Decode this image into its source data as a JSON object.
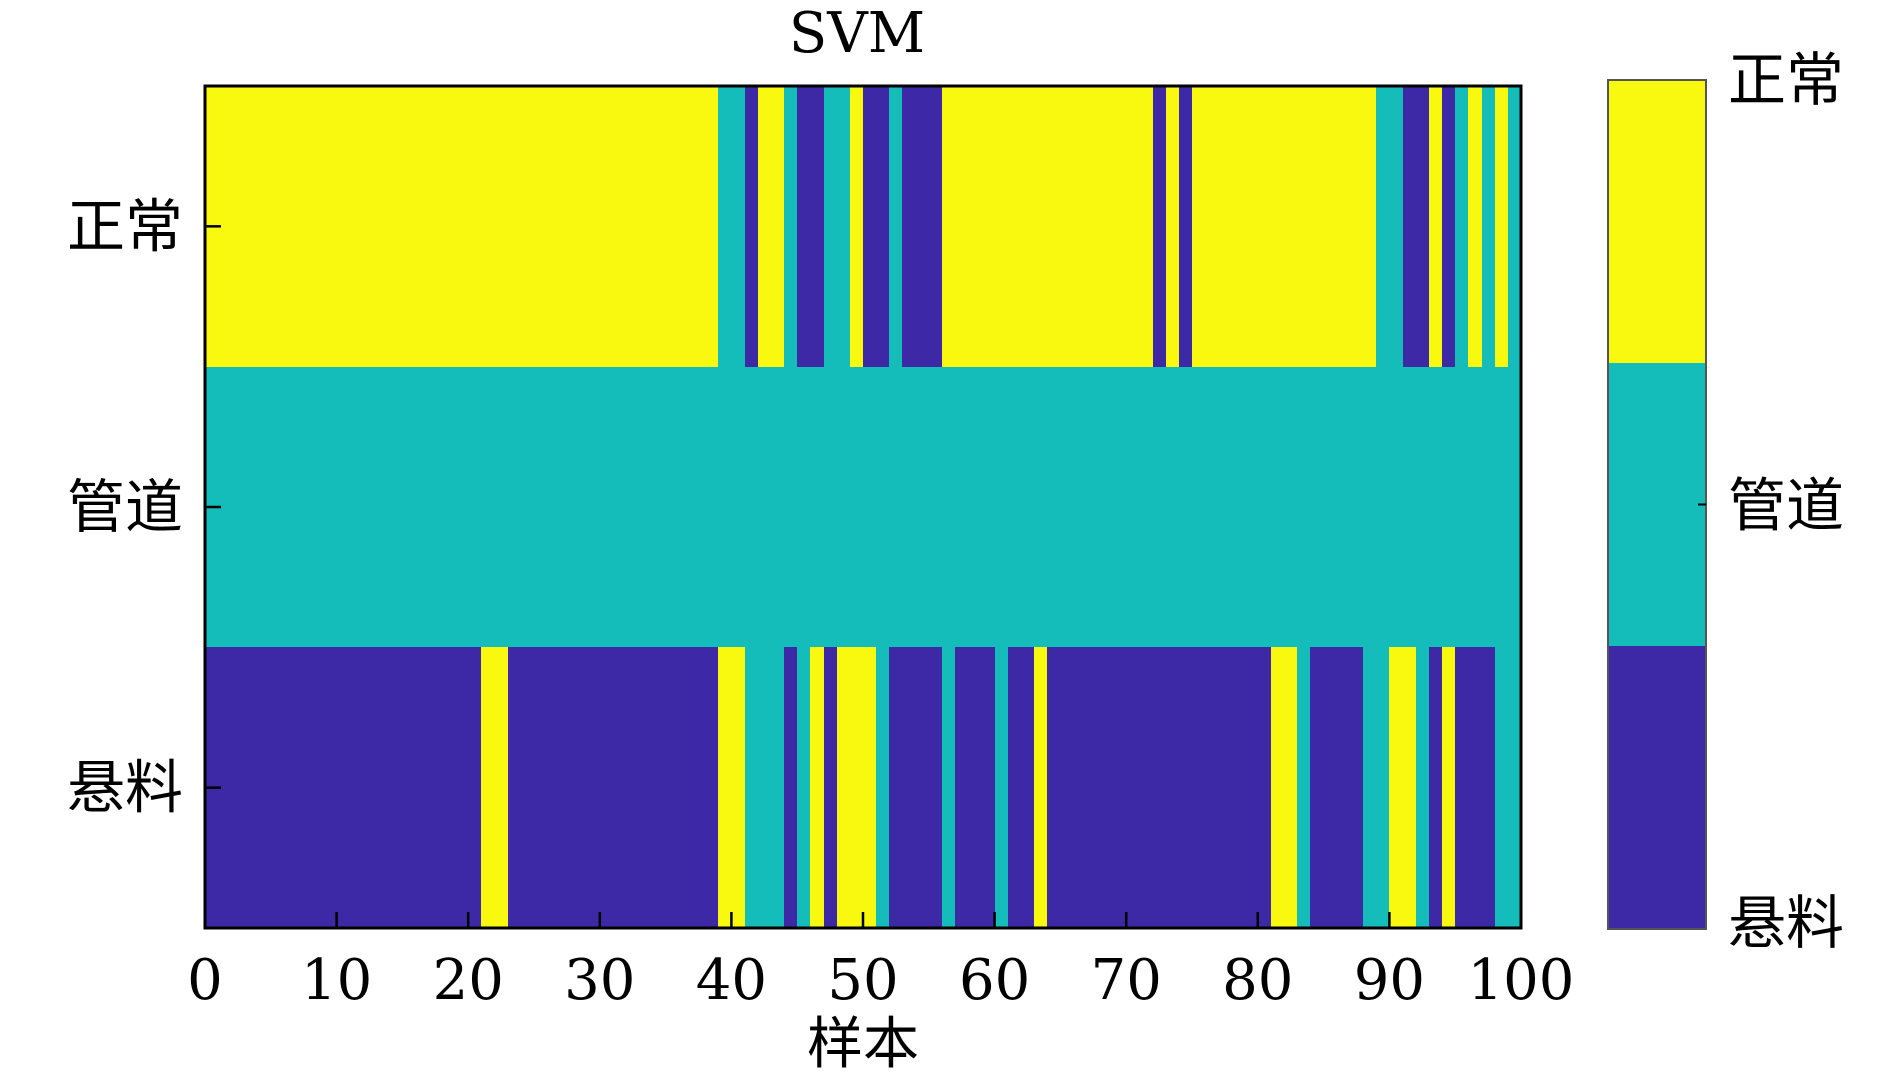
{
  "chart_data": {
    "type": "heatmap",
    "title": "SVM",
    "xlabel": "样本",
    "ylabel": "",
    "xlim": [
      0,
      100
    ],
    "xticks": [
      0,
      10,
      20,
      30,
      40,
      50,
      60,
      70,
      80,
      90,
      100
    ],
    "rows": [
      "正常",
      "管道",
      "悬料"
    ],
    "classes": [
      "正常",
      "管道",
      "悬料"
    ],
    "colors": {
      "正常": "#F9F90F",
      "管道": "#14BDBA",
      "悬料": "#3D28A5"
    },
    "colorbar": {
      "labels_top_to_bottom": [
        "正常",
        "管道",
        "悬料"
      ],
      "colors_top_to_bottom": [
        "#F9F90F",
        "#14BDBA",
        "#3D28A5"
      ]
    },
    "grid": false,
    "cells": [
      {
        "row": "正常",
        "segments": [
          [
            0,
            39,
            "正常"
          ],
          [
            39,
            41,
            "管道"
          ],
          [
            41,
            42,
            "悬料"
          ],
          [
            42,
            44,
            "正常"
          ],
          [
            44,
            45,
            "管道"
          ],
          [
            45,
            47,
            "悬料"
          ],
          [
            47,
            49,
            "管道"
          ],
          [
            49,
            50,
            "正常"
          ],
          [
            50,
            52,
            "悬料"
          ],
          [
            52,
            53,
            "管道"
          ],
          [
            53,
            56,
            "悬料"
          ],
          [
            56,
            72,
            "正常"
          ],
          [
            72,
            73,
            "悬料"
          ],
          [
            73,
            74,
            "正常"
          ],
          [
            74,
            75,
            "悬料"
          ],
          [
            75,
            89,
            "正常"
          ],
          [
            89,
            91,
            "管道"
          ],
          [
            91,
            93,
            "悬料"
          ],
          [
            93,
            94,
            "正常"
          ],
          [
            94,
            95,
            "悬料"
          ],
          [
            95,
            96,
            "管道"
          ],
          [
            96,
            97,
            "正常"
          ],
          [
            97,
            98,
            "管道"
          ],
          [
            98,
            99,
            "正常"
          ],
          [
            99,
            100,
            "管道"
          ]
        ]
      },
      {
        "row": "管道",
        "segments": [
          [
            0,
            100,
            "管道"
          ]
        ]
      },
      {
        "row": "悬料",
        "segments": [
          [
            0,
            21,
            "悬料"
          ],
          [
            21,
            23,
            "正常"
          ],
          [
            23,
            39,
            "悬料"
          ],
          [
            39,
            41,
            "正常"
          ],
          [
            41,
            44,
            "管道"
          ],
          [
            44,
            45,
            "悬料"
          ],
          [
            45,
            46,
            "管道"
          ],
          [
            46,
            47,
            "正常"
          ],
          [
            47,
            48,
            "悬料"
          ],
          [
            48,
            51,
            "正常"
          ],
          [
            51,
            52,
            "管道"
          ],
          [
            52,
            56,
            "悬料"
          ],
          [
            56,
            57,
            "管道"
          ],
          [
            57,
            60,
            "悬料"
          ],
          [
            60,
            61,
            "管道"
          ],
          [
            61,
            63,
            "悬料"
          ],
          [
            63,
            64,
            "正常"
          ],
          [
            64,
            81,
            "悬料"
          ],
          [
            81,
            83,
            "正常"
          ],
          [
            83,
            84,
            "管道"
          ],
          [
            84,
            88,
            "悬料"
          ],
          [
            88,
            90,
            "管道"
          ],
          [
            90,
            92,
            "正常"
          ],
          [
            92,
            93,
            "管道"
          ],
          [
            93,
            94,
            "悬料"
          ],
          [
            94,
            95,
            "正常"
          ],
          [
            95,
            98,
            "悬料"
          ],
          [
            98,
            100,
            "管道"
          ]
        ]
      }
    ]
  }
}
